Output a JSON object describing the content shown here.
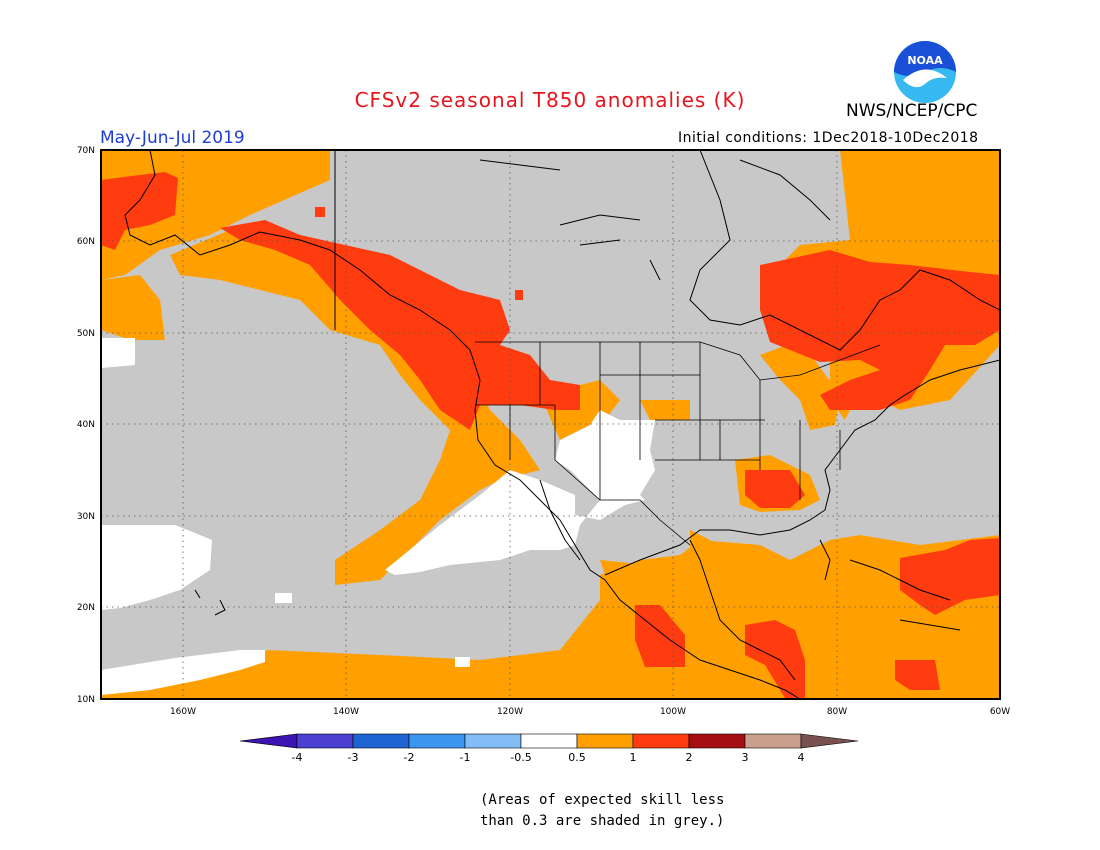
{
  "title": "CFSv2 seasonal T850 anomalies (K)",
  "agency": "NWS/NCEP/CPC",
  "season": "May-Jun-Jul 2019",
  "initial_conditions": "Initial conditions: 1Dec2018-10Dec2018",
  "logo": {
    "text": "NOAA",
    "icon": "noaa-logo-icon",
    "colors": [
      "#1a4fd8",
      "#36b8f0",
      "#ffffff"
    ]
  },
  "note": [
    "(Areas of expected skill less",
    "than 0.3 are shaded in grey.)"
  ],
  "map": {
    "lon_range": [
      -170,
      -60
    ],
    "lat_range": [
      10,
      70
    ],
    "lon_labels": [
      "160W",
      "140W",
      "120W",
      "100W",
      "80W",
      "60W"
    ],
    "lat_labels": [
      "10N",
      "20N",
      "30N",
      "40N",
      "50N",
      "60N",
      "70N"
    ],
    "grid": true,
    "background_color": "#c8c8c8"
  },
  "colorbar": {
    "labels": [
      "-4",
      "-3",
      "-2",
      "-1",
      "-0.5",
      "0.5",
      "1",
      "2",
      "3",
      "4"
    ],
    "colors": [
      "#3c14b4",
      "#4c40d0",
      "#1e64d2",
      "#3c96f0",
      "#82bef5",
      "#ffffff",
      "#ffa000",
      "#ff3c0f",
      "#a50f14",
      "#c8a08c",
      "#785050"
    ]
  },
  "anomaly_regions": [
    {
      "category": "1-2",
      "color": "#ff3c0f",
      "area": "Alaska coast / Gulf of Alaska"
    },
    {
      "category": "1-2",
      "color": "#ff3c0f",
      "area": "Western Canada and Pacific Northwest"
    },
    {
      "category": "1-2",
      "color": "#ff3c0f",
      "area": "Eastern Canada and Northeast US"
    },
    {
      "category": "0.5-1",
      "color": "#ffa000",
      "area": "Gulf of Mexico, Caribbean and tropical Pacific"
    },
    {
      "category": "-0.5-0.5",
      "color": "#ffffff",
      "area": "Southwest US, Baja California, Hawaii region"
    }
  ]
}
